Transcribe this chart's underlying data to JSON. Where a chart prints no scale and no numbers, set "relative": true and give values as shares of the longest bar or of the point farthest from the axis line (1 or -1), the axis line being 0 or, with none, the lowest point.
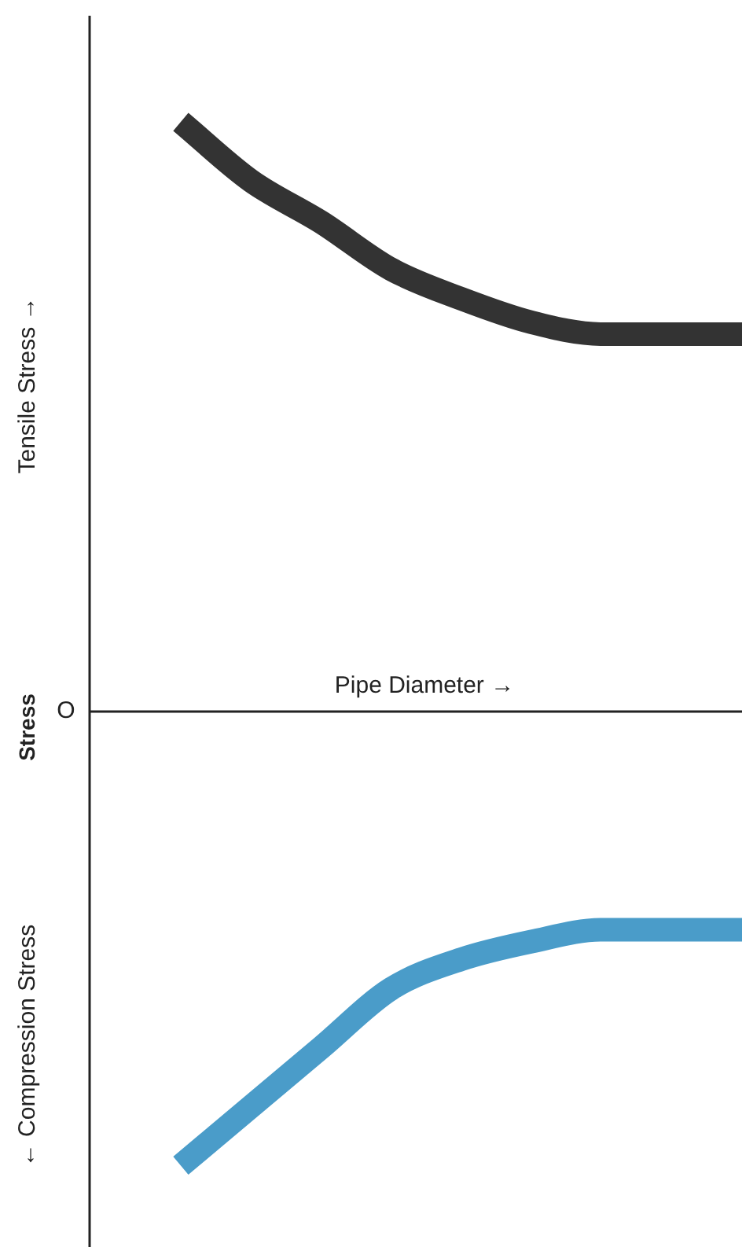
{
  "chart_data": {
    "type": "line",
    "relative": true,
    "ylabel": "Stress",
    "xlabel": "Pipe Diameter →",
    "annotations": [
      "Tensile Stress →",
      "← Compression Stress",
      "O"
    ],
    "categories": [
      null,
      null,
      null,
      null,
      null,
      null,
      null,
      null,
      null
    ],
    "series": [
      {
        "color": "#333333",
        "values": [
          1,
          0.9,
          0.83,
          0.75,
          0.7,
          0.66,
          0.64,
          0.64,
          0.64
        ]
      },
      {
        "color": "#4a9cc9",
        "values": [
          -0.77,
          -0.67,
          -0.57,
          -0.47,
          -0.42,
          -0.39,
          -0.37,
          -0.37,
          -0.37
        ]
      }
    ],
    "legend": false,
    "marker": "none",
    "line_style": "solid"
  }
}
